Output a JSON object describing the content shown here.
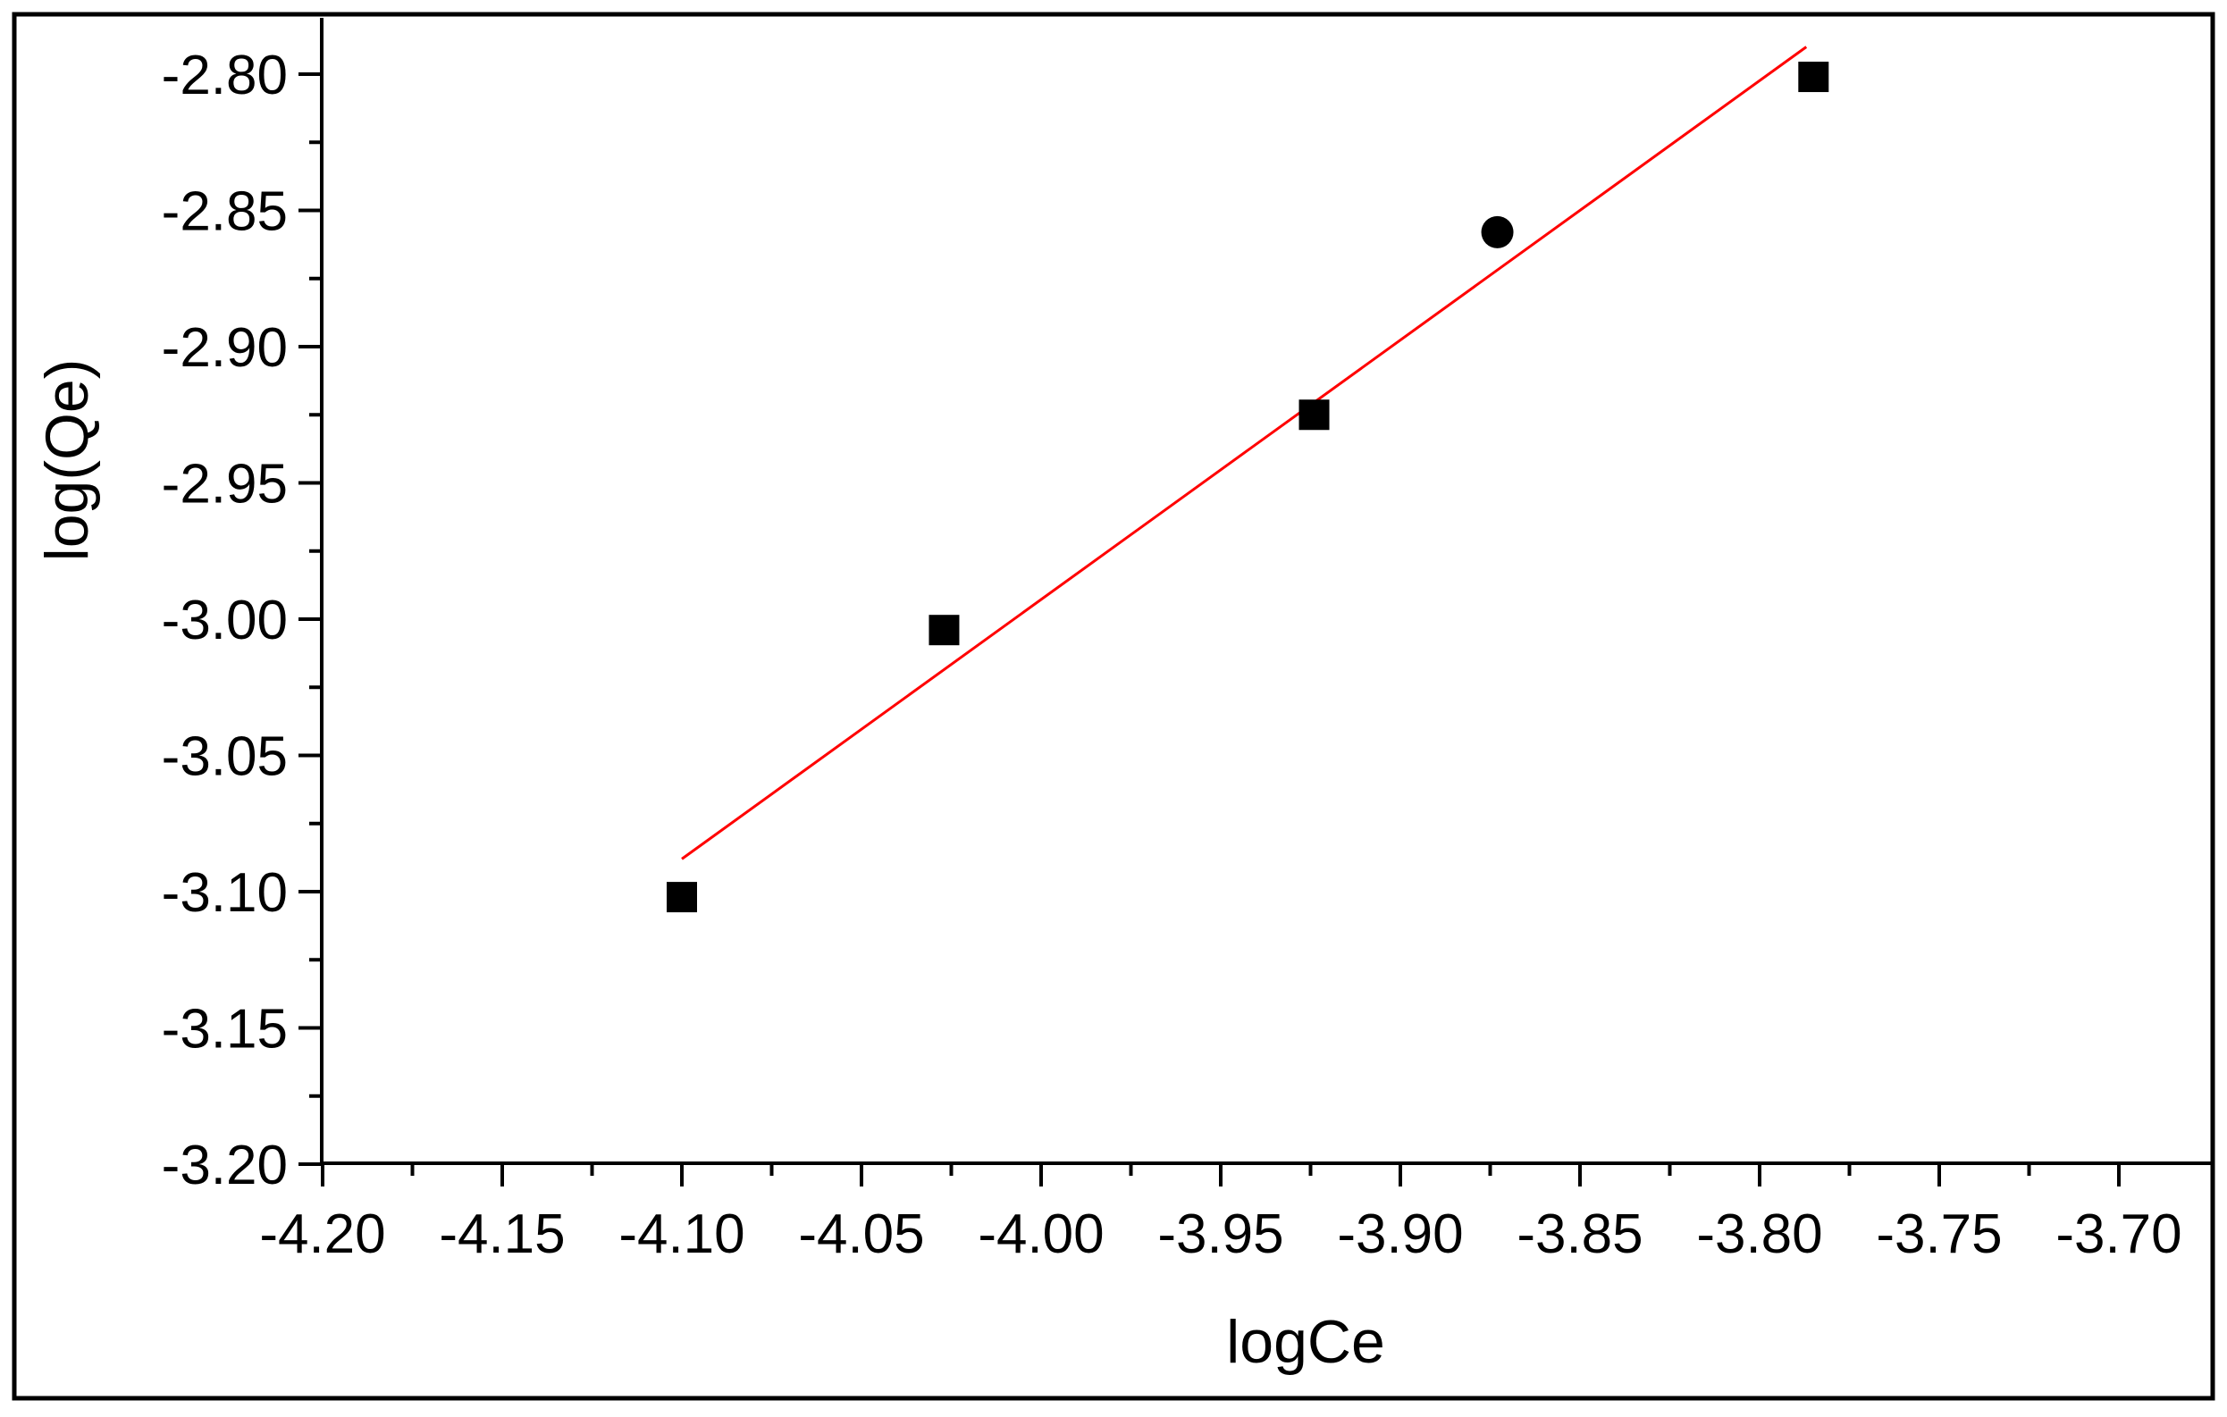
{
  "chart_data": {
    "type": "scatter",
    "title": "",
    "xlabel": "logCe",
    "ylabel": "log(Qe)",
    "xlim": [
      -4.2,
      -3.7
    ],
    "ylim": [
      -3.2,
      -2.8
    ],
    "x_ticks": [
      "-4.20",
      "-4.15",
      "-4.10",
      "-4.05",
      "-4.00",
      "-3.95",
      "-3.90",
      "-3.85",
      "-3.80",
      "-3.75",
      "-3.70"
    ],
    "y_ticks": [
      "-2.80",
      "-2.85",
      "-2.90",
      "-2.95",
      "-3.00",
      "-3.05",
      "-3.10",
      "-3.15",
      "-3.20"
    ],
    "grid": false,
    "series": [
      {
        "marker": "square",
        "color": "#000000",
        "points": [
          {
            "x": -4.1,
            "y": -3.102,
            "marker": "square"
          },
          {
            "x": -4.027,
            "y": -3.004,
            "marker": "square"
          },
          {
            "x": -3.924,
            "y": -2.925,
            "marker": "square"
          },
          {
            "x": -3.873,
            "y": -2.858,
            "marker": "circle"
          },
          {
            "x": -3.785,
            "y": -2.801,
            "marker": "square"
          }
        ]
      }
    ],
    "fit_line": {
      "color": "#ff0000",
      "x": [
        -4.1,
        -3.787
      ],
      "y": [
        -3.088,
        -2.79
      ]
    }
  }
}
